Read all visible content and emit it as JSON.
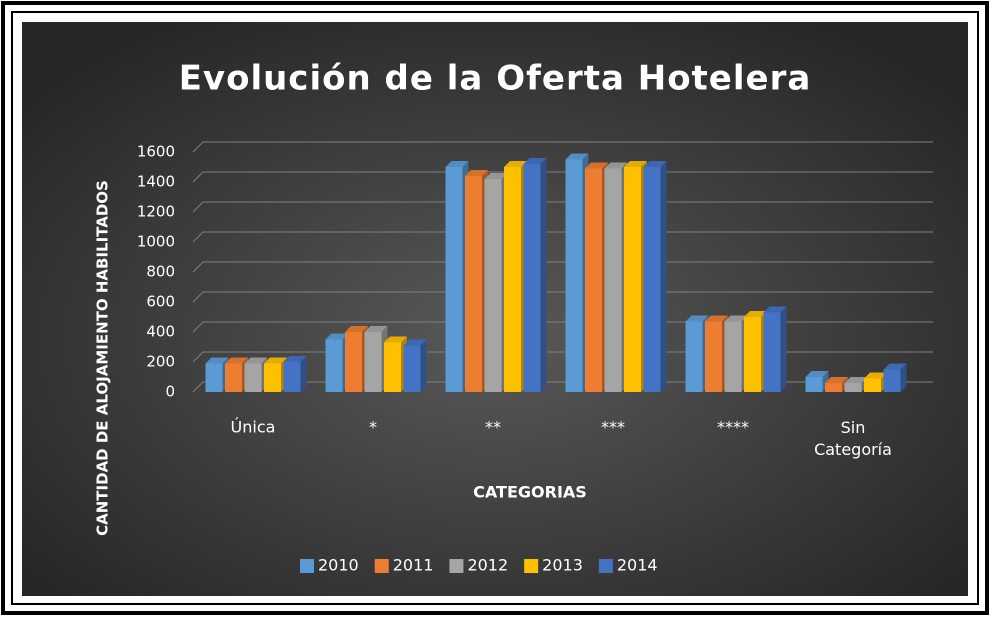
{
  "chart_data": {
    "type": "bar",
    "title": "Evolución  de la Oferta Hotelera",
    "x_label": "CATEGORIAS",
    "y_label": "CANTIDAD DE ALOJAMIENTO HABILITADOS",
    "categories": [
      "Única",
      "*",
      "**",
      "***",
      "****",
      "Sin Categoría"
    ],
    "series": [
      {
        "name": "2010",
        "color": "#5b9bd5",
        "values": [
          190,
          350,
          1500,
          1550,
          470,
          100
        ]
      },
      {
        "name": "2011",
        "color": "#ed7d31",
        "values": [
          190,
          400,
          1440,
          1490,
          470,
          60
        ]
      },
      {
        "name": "2012",
        "color": "#a5a5a5",
        "values": [
          190,
          400,
          1420,
          1490,
          470,
          60
        ]
      },
      {
        "name": "2013",
        "color": "#ffc000",
        "values": [
          190,
          330,
          1500,
          1500,
          500,
          90
        ]
      },
      {
        "name": "2014",
        "color": "#4472c4",
        "values": [
          200,
          310,
          1520,
          1500,
          530,
          150
        ]
      }
    ],
    "ylim": [
      0,
      1600
    ],
    "yticks": [
      0,
      200,
      400,
      600,
      800,
      1000,
      1200,
      1400,
      1600
    ],
    "grid": true,
    "legend": "bottom"
  }
}
